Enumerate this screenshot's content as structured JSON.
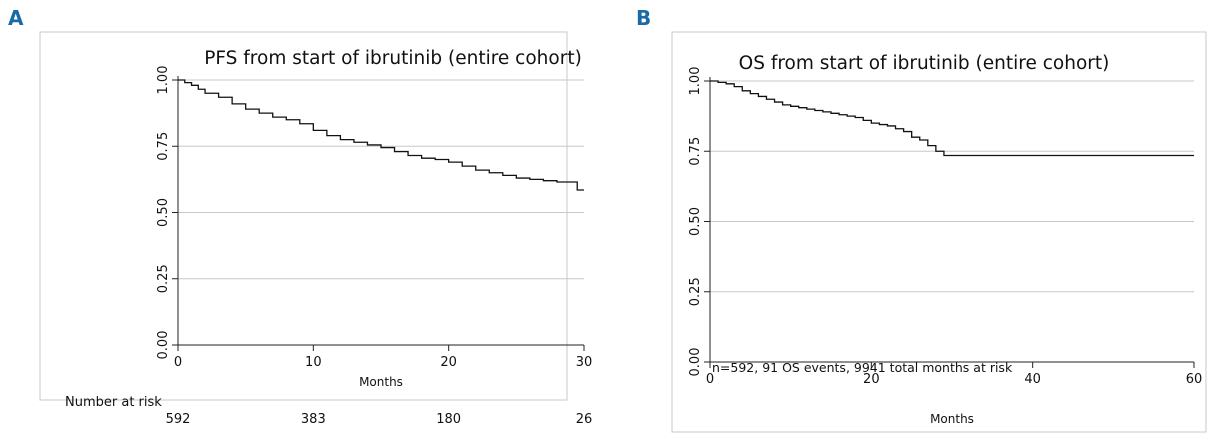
{
  "panels": [
    {
      "letter": "A"
    },
    {
      "letter": "B"
    }
  ],
  "chart_data": [
    {
      "type": "line",
      "title": "PFS from start of ibrutinib (entire cohort)",
      "xlabel": "Months",
      "ylabel": "",
      "xlim": [
        0,
        30
      ],
      "ylim": [
        0,
        1
      ],
      "xticks": [
        "0",
        "10",
        "20",
        "30"
      ],
      "yticks": [
        "0.00",
        "0.25",
        "0.50",
        "0.75",
        "1.00"
      ],
      "grid": true,
      "series": [
        {
          "x": [
            0,
            0.5,
            1,
            1.5,
            2,
            3,
            4,
            5,
            6,
            7,
            8,
            9,
            10,
            11,
            12,
            13,
            14,
            15,
            16,
            17,
            18,
            19,
            20,
            21,
            22,
            23,
            24,
            25,
            26,
            27,
            28,
            29,
            29.5,
            30
          ],
          "y": [
            1.0,
            0.99,
            0.98,
            0.965,
            0.95,
            0.935,
            0.91,
            0.89,
            0.875,
            0.86,
            0.85,
            0.835,
            0.81,
            0.79,
            0.775,
            0.765,
            0.755,
            0.745,
            0.73,
            0.715,
            0.705,
            0.7,
            0.69,
            0.675,
            0.66,
            0.65,
            0.64,
            0.63,
            0.625,
            0.62,
            0.615,
            0.615,
            0.585,
            0.585
          ]
        }
      ],
      "risk_table": {
        "label": "Number at risk",
        "x": [
          0,
          10,
          20,
          30
        ],
        "values": [
          "592",
          "383",
          "180",
          "26"
        ]
      }
    },
    {
      "type": "line",
      "title": "OS from start of ibrutinib (entire cohort)",
      "xlabel": "Months",
      "ylabel": "",
      "xlim": [
        0,
        60
      ],
      "ylim": [
        0,
        1
      ],
      "xticks": [
        "0",
        "20",
        "40",
        "60"
      ],
      "yticks": [
        "0.00",
        "0.25",
        "0.50",
        "0.75",
        "1.00"
      ],
      "grid": true,
      "annotation": "n=592, 91 OS events, 9941 total months at risk",
      "series": [
        {
          "x": [
            0,
            1,
            2,
            3,
            4,
            5,
            6,
            7,
            8,
            9,
            10,
            11,
            12,
            13,
            14,
            15,
            16,
            17,
            18,
            19,
            20,
            21,
            22,
            23,
            24,
            25,
            26,
            27,
            28,
            29,
            30,
            40,
            50,
            60
          ],
          "y": [
            1.0,
            0.995,
            0.99,
            0.98,
            0.965,
            0.955,
            0.945,
            0.935,
            0.925,
            0.915,
            0.91,
            0.905,
            0.9,
            0.895,
            0.89,
            0.885,
            0.88,
            0.875,
            0.87,
            0.86,
            0.85,
            0.845,
            0.84,
            0.83,
            0.82,
            0.8,
            0.79,
            0.77,
            0.75,
            0.735,
            0.735,
            0.735,
            0.735,
            0.735
          ]
        }
      ]
    }
  ]
}
